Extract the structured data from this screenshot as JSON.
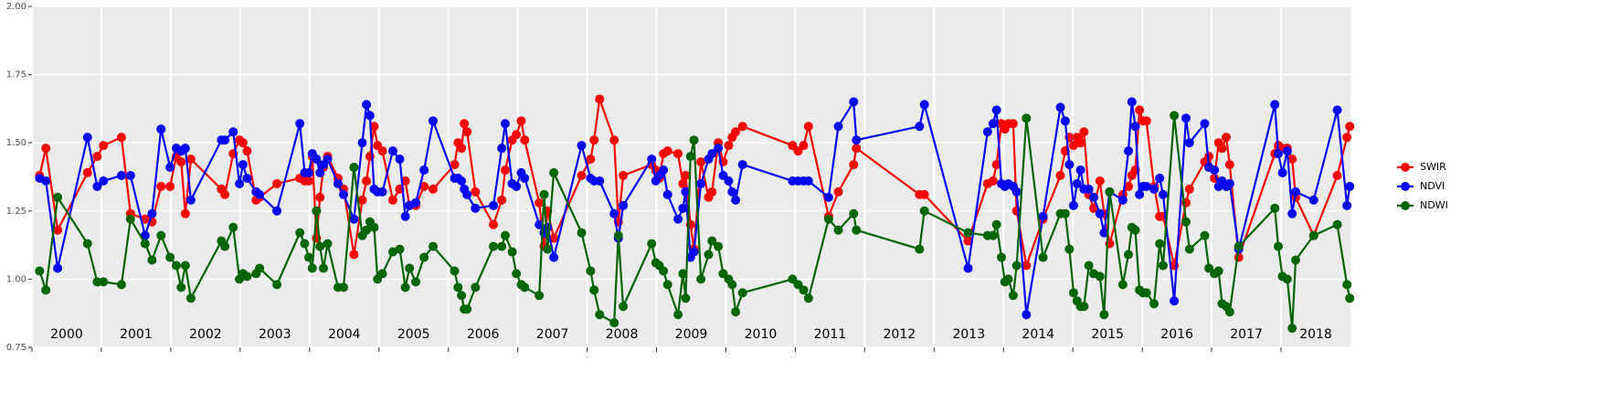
{
  "chart_data": {
    "type": "line",
    "x": [
      2000.11,
      2000.2,
      2000.37,
      2000.8,
      2000.94,
      2001.03,
      2001.29,
      2001.42,
      2001.63,
      2001.73,
      2001.86,
      2001.99,
      2002.08,
      2002.15,
      2002.21,
      2002.29,
      2002.73,
      2002.78,
      2002.9,
      2002.99,
      2003.04,
      2003.1,
      2003.23,
      2003.28,
      2003.53,
      2003.86,
      2003.93,
      2003.99,
      2004.04,
      2004.1,
      2004.15,
      2004.2,
      2004.26,
      2004.41,
      2004.49,
      2004.64,
      2004.76,
      2004.82,
      2004.87,
      2004.93,
      2004.98,
      2005.05,
      2005.2,
      2005.3,
      2005.38,
      2005.44,
      2005.53,
      2005.65,
      2005.78,
      2006.09,
      2006.14,
      2006.19,
      2006.23,
      2006.27,
      2006.39,
      2006.65,
      2006.77,
      2006.82,
      2006.92,
      2006.98,
      2007.05,
      2007.1,
      2007.31,
      2007.38,
      2007.43,
      2007.52,
      2007.92,
      2008.05,
      2008.1,
      2008.18,
      2008.39,
      2008.45,
      2008.52,
      2008.93,
      2008.99,
      2009.04,
      2009.1,
      2009.16,
      2009.31,
      2009.38,
      2009.42,
      2009.49,
      2009.54,
      2009.64,
      2009.75,
      2009.8,
      2009.89,
      2009.96,
      2010.04,
      2010.09,
      2010.14,
      2010.24,
      2010.96,
      2011.04,
      2011.12,
      2011.19,
      2011.48,
      2011.62,
      2011.84,
      2011.88,
      2012.79,
      2012.86,
      2013.49,
      2013.77,
      2013.85,
      2013.9,
      2013.97,
      2014.02,
      2014.07,
      2014.14,
      2014.19,
      2014.33,
      2014.57,
      2014.82,
      2014.89,
      2014.95,
      2015.01,
      2015.06,
      2015.11,
      2015.16,
      2015.23,
      2015.3,
      2015.39,
      2015.45,
      2015.53,
      2015.72,
      2015.8,
      2015.85,
      2015.9,
      2015.96,
      2016.01,
      2016.06,
      2016.17,
      2016.25,
      2016.3,
      2016.46,
      2016.63,
      2016.68,
      2016.9,
      2016.96,
      2017.04,
      2017.1,
      2017.15,
      2017.21,
      2017.26,
      2017.39,
      2017.91,
      2017.96,
      2018.02,
      2018.09,
      2018.16,
      2018.21,
      2018.47,
      2018.81,
      2018.95,
      2018.99
    ],
    "series": [
      {
        "name": "SWIR",
        "color": "#ff0000",
        "values": [
          1.38,
          1.48,
          1.18,
          1.39,
          1.45,
          1.49,
          1.52,
          1.24,
          1.22,
          1.21,
          1.34,
          1.34,
          1.45,
          1.43,
          1.24,
          1.44,
          1.33,
          1.31,
          1.46,
          1.51,
          1.5,
          1.47,
          1.29,
          1.3,
          1.35,
          1.37,
          1.36,
          1.36,
          1.45,
          1.15,
          1.3,
          1.41,
          1.45,
          1.37,
          1.33,
          1.09,
          1.29,
          1.36,
          1.45,
          1.56,
          1.49,
          1.47,
          1.29,
          1.33,
          1.36,
          1.27,
          1.27,
          1.34,
          1.33,
          1.42,
          1.5,
          1.48,
          1.57,
          1.54,
          1.32,
          1.2,
          1.29,
          1.4,
          1.51,
          1.53,
          1.58,
          1.51,
          1.28,
          1.12,
          1.25,
          1.15,
          1.38,
          1.44,
          1.51,
          1.66,
          1.51,
          1.21,
          1.38,
          1.42,
          1.4,
          1.37,
          1.46,
          1.47,
          1.46,
          1.35,
          1.38,
          1.2,
          1.11,
          1.43,
          1.3,
          1.32,
          1.5,
          1.43,
          1.49,
          1.52,
          1.54,
          1.56,
          1.49,
          1.47,
          1.49,
          1.56,
          1.23,
          1.32,
          1.42,
          1.48,
          1.31,
          1.31,
          1.14,
          1.35,
          1.36,
          1.42,
          1.57,
          1.55,
          1.57,
          1.57,
          1.25,
          1.05,
          1.22,
          1.38,
          1.47,
          1.52,
          1.49,
          1.52,
          1.5,
          1.54,
          1.31,
          1.26,
          1.36,
          1.24,
          1.13,
          1.31,
          1.34,
          1.38,
          1.4,
          1.62,
          1.58,
          1.58,
          1.34,
          1.23,
          1.23,
          1.05,
          1.28,
          1.33,
          1.43,
          1.45,
          1.37,
          1.5,
          1.48,
          1.52,
          1.42,
          1.08,
          1.46,
          1.49,
          1.48,
          1.48,
          1.44,
          1.3,
          1.16,
          1.38,
          1.52,
          1.56
        ]
      },
      {
        "name": "NDVI",
        "color": "#0000ff",
        "values": [
          1.37,
          1.36,
          1.04,
          1.52,
          1.34,
          1.36,
          1.38,
          1.38,
          1.16,
          1.24,
          1.55,
          1.41,
          1.48,
          1.47,
          1.48,
          1.29,
          1.51,
          1.51,
          1.54,
          1.35,
          1.42,
          1.37,
          1.32,
          1.31,
          1.25,
          1.57,
          1.39,
          1.39,
          1.46,
          1.44,
          1.39,
          1.42,
          1.44,
          1.35,
          1.31,
          1.22,
          1.5,
          1.64,
          1.6,
          1.33,
          1.32,
          1.32,
          1.47,
          1.44,
          1.23,
          1.27,
          1.28,
          1.4,
          1.58,
          1.37,
          1.37,
          1.36,
          1.33,
          1.31,
          1.26,
          1.27,
          1.48,
          1.57,
          1.35,
          1.34,
          1.39,
          1.37,
          1.2,
          1.17,
          1.19,
          1.08,
          1.49,
          1.37,
          1.36,
          1.36,
          1.24,
          1.15,
          1.27,
          1.44,
          1.36,
          1.38,
          1.4,
          1.31,
          1.22,
          1.26,
          1.32,
          1.08,
          1.1,
          1.35,
          1.44,
          1.46,
          1.48,
          1.38,
          1.36,
          1.32,
          1.29,
          1.42,
          1.36,
          1.36,
          1.36,
          1.36,
          1.3,
          1.56,
          1.65,
          1.51,
          1.56,
          1.64,
          1.04,
          1.54,
          1.57,
          1.62,
          1.35,
          1.34,
          1.35,
          1.34,
          1.32,
          0.87,
          1.23,
          1.63,
          1.58,
          1.42,
          1.27,
          1.35,
          1.4,
          1.33,
          1.33,
          1.3,
          1.24,
          1.17,
          1.32,
          1.29,
          1.47,
          1.65,
          1.56,
          1.31,
          1.34,
          1.34,
          1.33,
          1.37,
          1.31,
          0.92,
          1.59,
          1.5,
          1.57,
          1.41,
          1.4,
          1.34,
          1.36,
          1.34,
          1.35,
          1.11,
          1.64,
          1.46,
          1.39,
          1.47,
          1.24,
          1.32,
          1.29,
          1.62,
          1.27,
          1.34
        ]
      },
      {
        "name": "NDWI",
        "color": "#006400",
        "values": [
          1.03,
          0.96,
          1.3,
          1.13,
          0.99,
          0.99,
          0.98,
          1.22,
          1.13,
          1.07,
          1.16,
          1.08,
          1.05,
          0.97,
          1.05,
          0.93,
          1.14,
          1.12,
          1.19,
          1.0,
          1.02,
          1.01,
          1.02,
          1.04,
          0.98,
          1.17,
          1.13,
          1.08,
          1.04,
          1.25,
          1.12,
          1.04,
          1.13,
          0.97,
          0.97,
          1.41,
          1.16,
          1.18,
          1.21,
          1.19,
          1.0,
          1.02,
          1.1,
          1.11,
          0.97,
          1.04,
          0.99,
          1.08,
          1.12,
          1.03,
          0.97,
          0.94,
          0.89,
          0.89,
          0.97,
          1.12,
          1.12,
          1.16,
          1.1,
          1.02,
          0.98,
          0.97,
          0.94,
          1.31,
          1.11,
          1.39,
          1.17,
          1.03,
          0.96,
          0.87,
          0.84,
          1.16,
          0.9,
          1.13,
          1.06,
          1.05,
          1.03,
          0.98,
          0.87,
          1.02,
          0.93,
          1.45,
          1.51,
          1.0,
          1.09,
          1.14,
          1.12,
          1.02,
          1.0,
          0.98,
          0.88,
          0.95,
          1.0,
          0.98,
          0.96,
          0.93,
          1.22,
          1.18,
          1.24,
          1.18,
          1.11,
          1.25,
          1.17,
          1.16,
          1.16,
          1.2,
          1.08,
          0.99,
          1.0,
          0.94,
          1.05,
          1.59,
          1.08,
          1.24,
          1.24,
          1.11,
          0.95,
          0.92,
          0.9,
          0.9,
          1.05,
          1.02,
          1.01,
          0.87,
          1.32,
          0.98,
          1.09,
          1.19,
          1.18,
          0.96,
          0.95,
          0.95,
          0.91,
          1.13,
          1.05,
          1.6,
          1.21,
          1.11,
          1.16,
          1.04,
          1.02,
          1.03,
          0.91,
          0.9,
          0.88,
          1.12,
          1.26,
          1.12,
          1.01,
          1.0,
          0.82,
          1.07,
          1.16,
          1.2,
          0.98,
          0.93
        ]
      }
    ],
    "xlim": [
      2000,
      2019
    ],
    "xticks": [
      2000,
      2001,
      2002,
      2003,
      2004,
      2005,
      2006,
      2007,
      2008,
      2009,
      2010,
      2011,
      2012,
      2013,
      2014,
      2015,
      2016,
      2017,
      2018
    ],
    "ylim": [
      0.75,
      2
    ],
    "yticks": [
      {
        "value": 0.75,
        "label": "0.75"
      },
      {
        "value": 1,
        "label": "1.00"
      },
      {
        "value": 1.25,
        "label": "1.25"
      },
      {
        "value": 1.5,
        "label": "1.50"
      },
      {
        "value": 1.75,
        "label": "1.75"
      },
      {
        "value": 2,
        "label": "2.00"
      }
    ],
    "grid": true,
    "legend": "right"
  }
}
